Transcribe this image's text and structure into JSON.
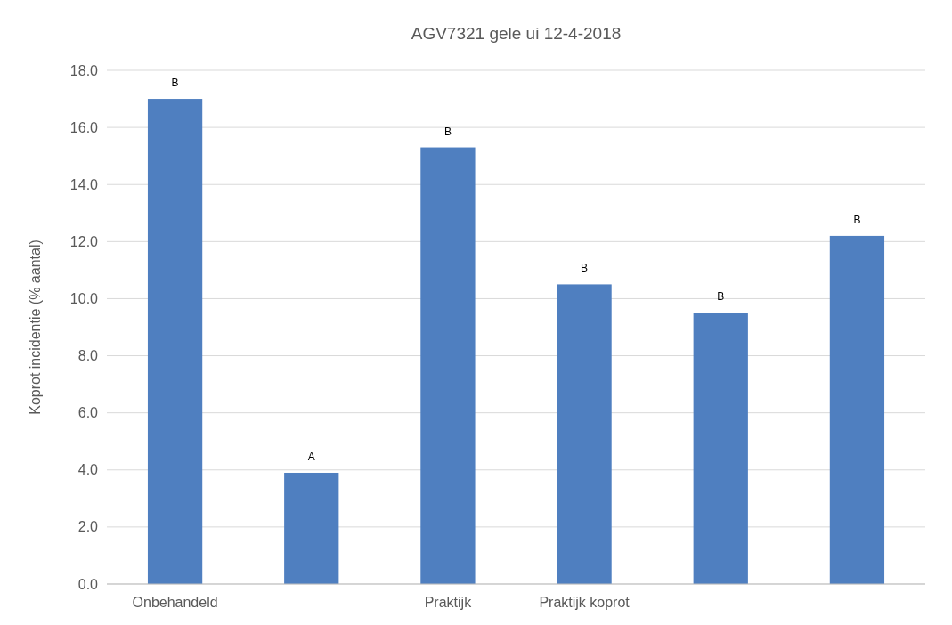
{
  "chart_data": {
    "type": "bar",
    "title": "AGV7321 gele ui 12-4-2018",
    "ylabel": "Koprot incidentie (% aantal)",
    "categories": [
      "Onbehandeld",
      null,
      "Praktijk",
      "Praktijk koprot",
      null,
      null
    ],
    "values": [
      17.0,
      3.9,
      15.3,
      10.5,
      9.5,
      12.2
    ],
    "color": "#4f7fc0",
    "ylim": [
      0,
      18
    ],
    "yticks": [
      {
        "value": 0,
        "label": "0.0"
      },
      {
        "value": 2,
        "label": "2.0"
      },
      {
        "value": 4,
        "label": "4.0"
      },
      {
        "value": 6,
        "label": "6.0"
      },
      {
        "value": 8,
        "label": "8.0"
      },
      {
        "value": 10,
        "label": "10.0"
      },
      {
        "value": 12,
        "label": "12.0"
      },
      {
        "value": 14,
        "label": "14.0"
      },
      {
        "value": 16,
        "label": "16.0"
      },
      {
        "value": 18,
        "label": "18.0"
      }
    ],
    "grid": "y",
    "annotations": [
      "B",
      "A",
      "B",
      "B",
      "B",
      "B"
    ]
  }
}
